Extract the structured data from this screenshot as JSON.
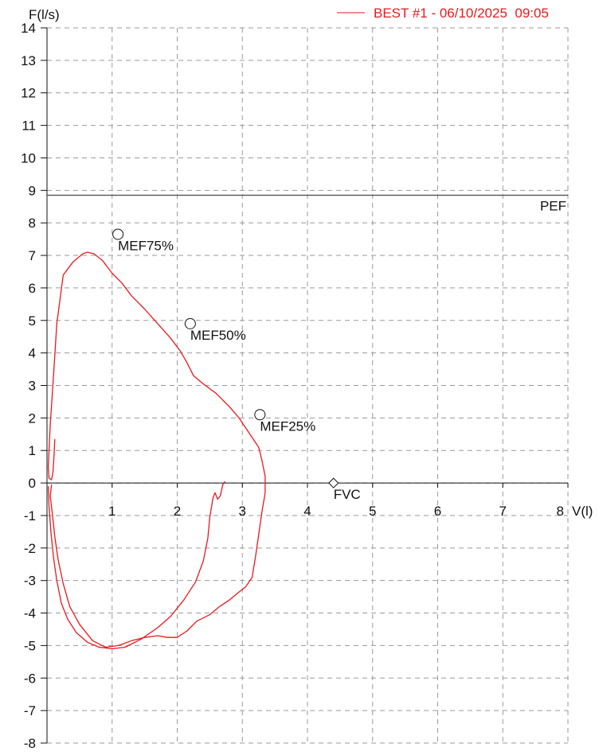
{
  "chart_data": {
    "type": "line",
    "xlabel": "V(l)",
    "ylabel": "F(l/s)",
    "xlim": [
      0,
      8
    ],
    "ylim": [
      -8,
      14
    ],
    "x_ticks": [
      "1",
      "2",
      "3",
      "4",
      "5",
      "6",
      "7",
      "8"
    ],
    "y_ticks": [
      "14",
      "13",
      "12",
      "11",
      "10",
      "9",
      "8",
      "7",
      "6",
      "5",
      "4",
      "3",
      "2",
      "1",
      "0",
      "-1",
      "-2",
      "-3",
      "-4",
      "-5",
      "-6",
      "-7",
      "-8"
    ],
    "grid": true,
    "legend_position": "top-right",
    "series": [
      {
        "name": "BEST #1 - 06/10/2025  09:05",
        "color": "#e8191c",
        "points": [
          [
            0.12,
            1.35
          ],
          [
            0.11,
            0.9
          ],
          [
            0.1,
            0.6
          ],
          [
            0.09,
            0.3
          ],
          [
            0.07,
            0.1
          ],
          [
            0.03,
            0.15
          ],
          [
            0.02,
            0.5
          ],
          [
            0.05,
            1.8
          ],
          [
            0.1,
            3.3
          ],
          [
            0.15,
            4.9
          ],
          [
            0.25,
            6.4
          ],
          [
            0.4,
            6.8
          ],
          [
            0.55,
            7.05
          ],
          [
            0.62,
            7.1
          ],
          [
            0.72,
            7.05
          ],
          [
            0.85,
            6.85
          ],
          [
            1.0,
            6.45
          ],
          [
            1.15,
            6.15
          ],
          [
            1.3,
            5.75
          ],
          [
            1.5,
            5.35
          ],
          [
            1.7,
            4.9
          ],
          [
            1.9,
            4.45
          ],
          [
            2.05,
            4.05
          ],
          [
            2.15,
            3.7
          ],
          [
            2.25,
            3.3
          ],
          [
            2.4,
            3.05
          ],
          [
            2.6,
            2.75
          ],
          [
            2.8,
            2.35
          ],
          [
            2.95,
            2.0
          ],
          [
            3.05,
            1.7
          ],
          [
            3.15,
            1.4
          ],
          [
            3.25,
            1.1
          ],
          [
            3.3,
            0.7
          ],
          [
            3.35,
            0.2
          ],
          [
            3.35,
            -0.3
          ],
          [
            3.3,
            -0.9
          ],
          [
            3.25,
            -1.6
          ],
          [
            3.2,
            -2.3
          ],
          [
            3.15,
            -2.9
          ],
          [
            3.05,
            -3.2
          ],
          [
            2.95,
            -3.35
          ],
          [
            2.8,
            -3.6
          ],
          [
            2.65,
            -3.8
          ],
          [
            2.5,
            -4.05
          ],
          [
            2.3,
            -4.25
          ],
          [
            2.15,
            -4.55
          ],
          [
            2.0,
            -4.75
          ],
          [
            1.85,
            -4.75
          ],
          [
            1.7,
            -4.7
          ],
          [
            1.5,
            -4.75
          ],
          [
            1.3,
            -4.85
          ],
          [
            1.1,
            -5.0
          ],
          [
            0.9,
            -5.05
          ],
          [
            0.7,
            -4.85
          ],
          [
            0.5,
            -4.35
          ],
          [
            0.35,
            -3.8
          ],
          [
            0.25,
            -3.1
          ],
          [
            0.17,
            -2.35
          ],
          [
            0.12,
            -1.65
          ],
          [
            0.08,
            -0.9
          ],
          [
            0.05,
            -0.4
          ],
          [
            0.07,
            -0.05
          ]
        ]
      },
      {
        "name": "",
        "color": "#e8191c",
        "points": [
          [
            0.02,
            -0.1
          ],
          [
            0.03,
            -0.7
          ],
          [
            0.06,
            -1.5
          ],
          [
            0.1,
            -2.3
          ],
          [
            0.15,
            -3.0
          ],
          [
            0.22,
            -3.7
          ],
          [
            0.32,
            -4.2
          ],
          [
            0.45,
            -4.6
          ],
          [
            0.62,
            -4.9
          ],
          [
            0.8,
            -5.05
          ],
          [
            1.0,
            -5.1
          ],
          [
            1.2,
            -5.05
          ],
          [
            1.45,
            -4.8
          ],
          [
            1.7,
            -4.45
          ],
          [
            1.9,
            -4.1
          ],
          [
            2.1,
            -3.6
          ],
          [
            2.28,
            -3.05
          ],
          [
            2.4,
            -2.4
          ],
          [
            2.47,
            -1.7
          ],
          [
            2.5,
            -1.05
          ],
          [
            2.55,
            -0.45
          ],
          [
            2.58,
            -0.3
          ],
          [
            2.62,
            -0.5
          ],
          [
            2.66,
            -0.4
          ],
          [
            2.7,
            -0.05
          ],
          [
            2.72,
            0.0
          ],
          [
            2.73,
            0.05
          ]
        ]
      }
    ],
    "reference_lines": [
      {
        "label": "PEF",
        "y": 8.85
      }
    ],
    "markers": [
      {
        "label": "MEF75%",
        "x": 1.09,
        "y": 7.65,
        "shape": "circle"
      },
      {
        "label": "MEF50%",
        "x": 2.2,
        "y": 4.9,
        "shape": "circle"
      },
      {
        "label": "MEF25%",
        "x": 3.27,
        "y": 2.1,
        "shape": "circle"
      },
      {
        "label": "FVC",
        "x": 4.4,
        "y": 0.0,
        "shape": "diamond"
      }
    ]
  }
}
